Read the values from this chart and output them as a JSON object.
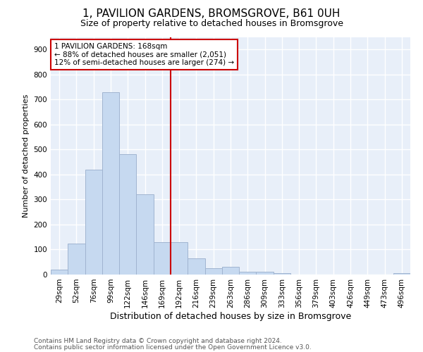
{
  "title1": "1, PAVILION GARDENS, BROMSGROVE, B61 0UH",
  "title2": "Size of property relative to detached houses in Bromsgrove",
  "xlabel": "Distribution of detached houses by size in Bromsgrove",
  "ylabel": "Number of detached properties",
  "categories": [
    "29sqm",
    "52sqm",
    "76sqm",
    "99sqm",
    "122sqm",
    "146sqm",
    "169sqm",
    "192sqm",
    "216sqm",
    "239sqm",
    "263sqm",
    "286sqm",
    "309sqm",
    "333sqm",
    "356sqm",
    "379sqm",
    "403sqm",
    "426sqm",
    "449sqm",
    "473sqm",
    "496sqm"
  ],
  "values": [
    20,
    125,
    420,
    730,
    480,
    320,
    130,
    130,
    65,
    25,
    30,
    10,
    10,
    5,
    0,
    0,
    0,
    0,
    0,
    0,
    5
  ],
  "bar_color": "#c6d9f0",
  "bar_edge_color": "#a0b4d0",
  "background_color": "#e8eff9",
  "grid_color": "#ffffff",
  "red_line_index": 6,
  "red_line_color": "#cc0000",
  "annotation_text": "1 PAVILION GARDENS: 168sqm\n← 88% of detached houses are smaller (2,051)\n12% of semi-detached houses are larger (274) →",
  "annotation_box_color": "#cc0000",
  "ylim": [
    0,
    950
  ],
  "yticks": [
    0,
    100,
    200,
    300,
    400,
    500,
    600,
    700,
    800,
    900
  ],
  "footer1": "Contains HM Land Registry data © Crown copyright and database right 2024.",
  "footer2": "Contains public sector information licensed under the Open Government Licence v3.0.",
  "title1_fontsize": 11,
  "title2_fontsize": 9,
  "ylabel_fontsize": 8,
  "xlabel_fontsize": 9,
  "tick_fontsize": 7.5,
  "footer_fontsize": 6.5,
  "annot_fontsize": 7.5
}
